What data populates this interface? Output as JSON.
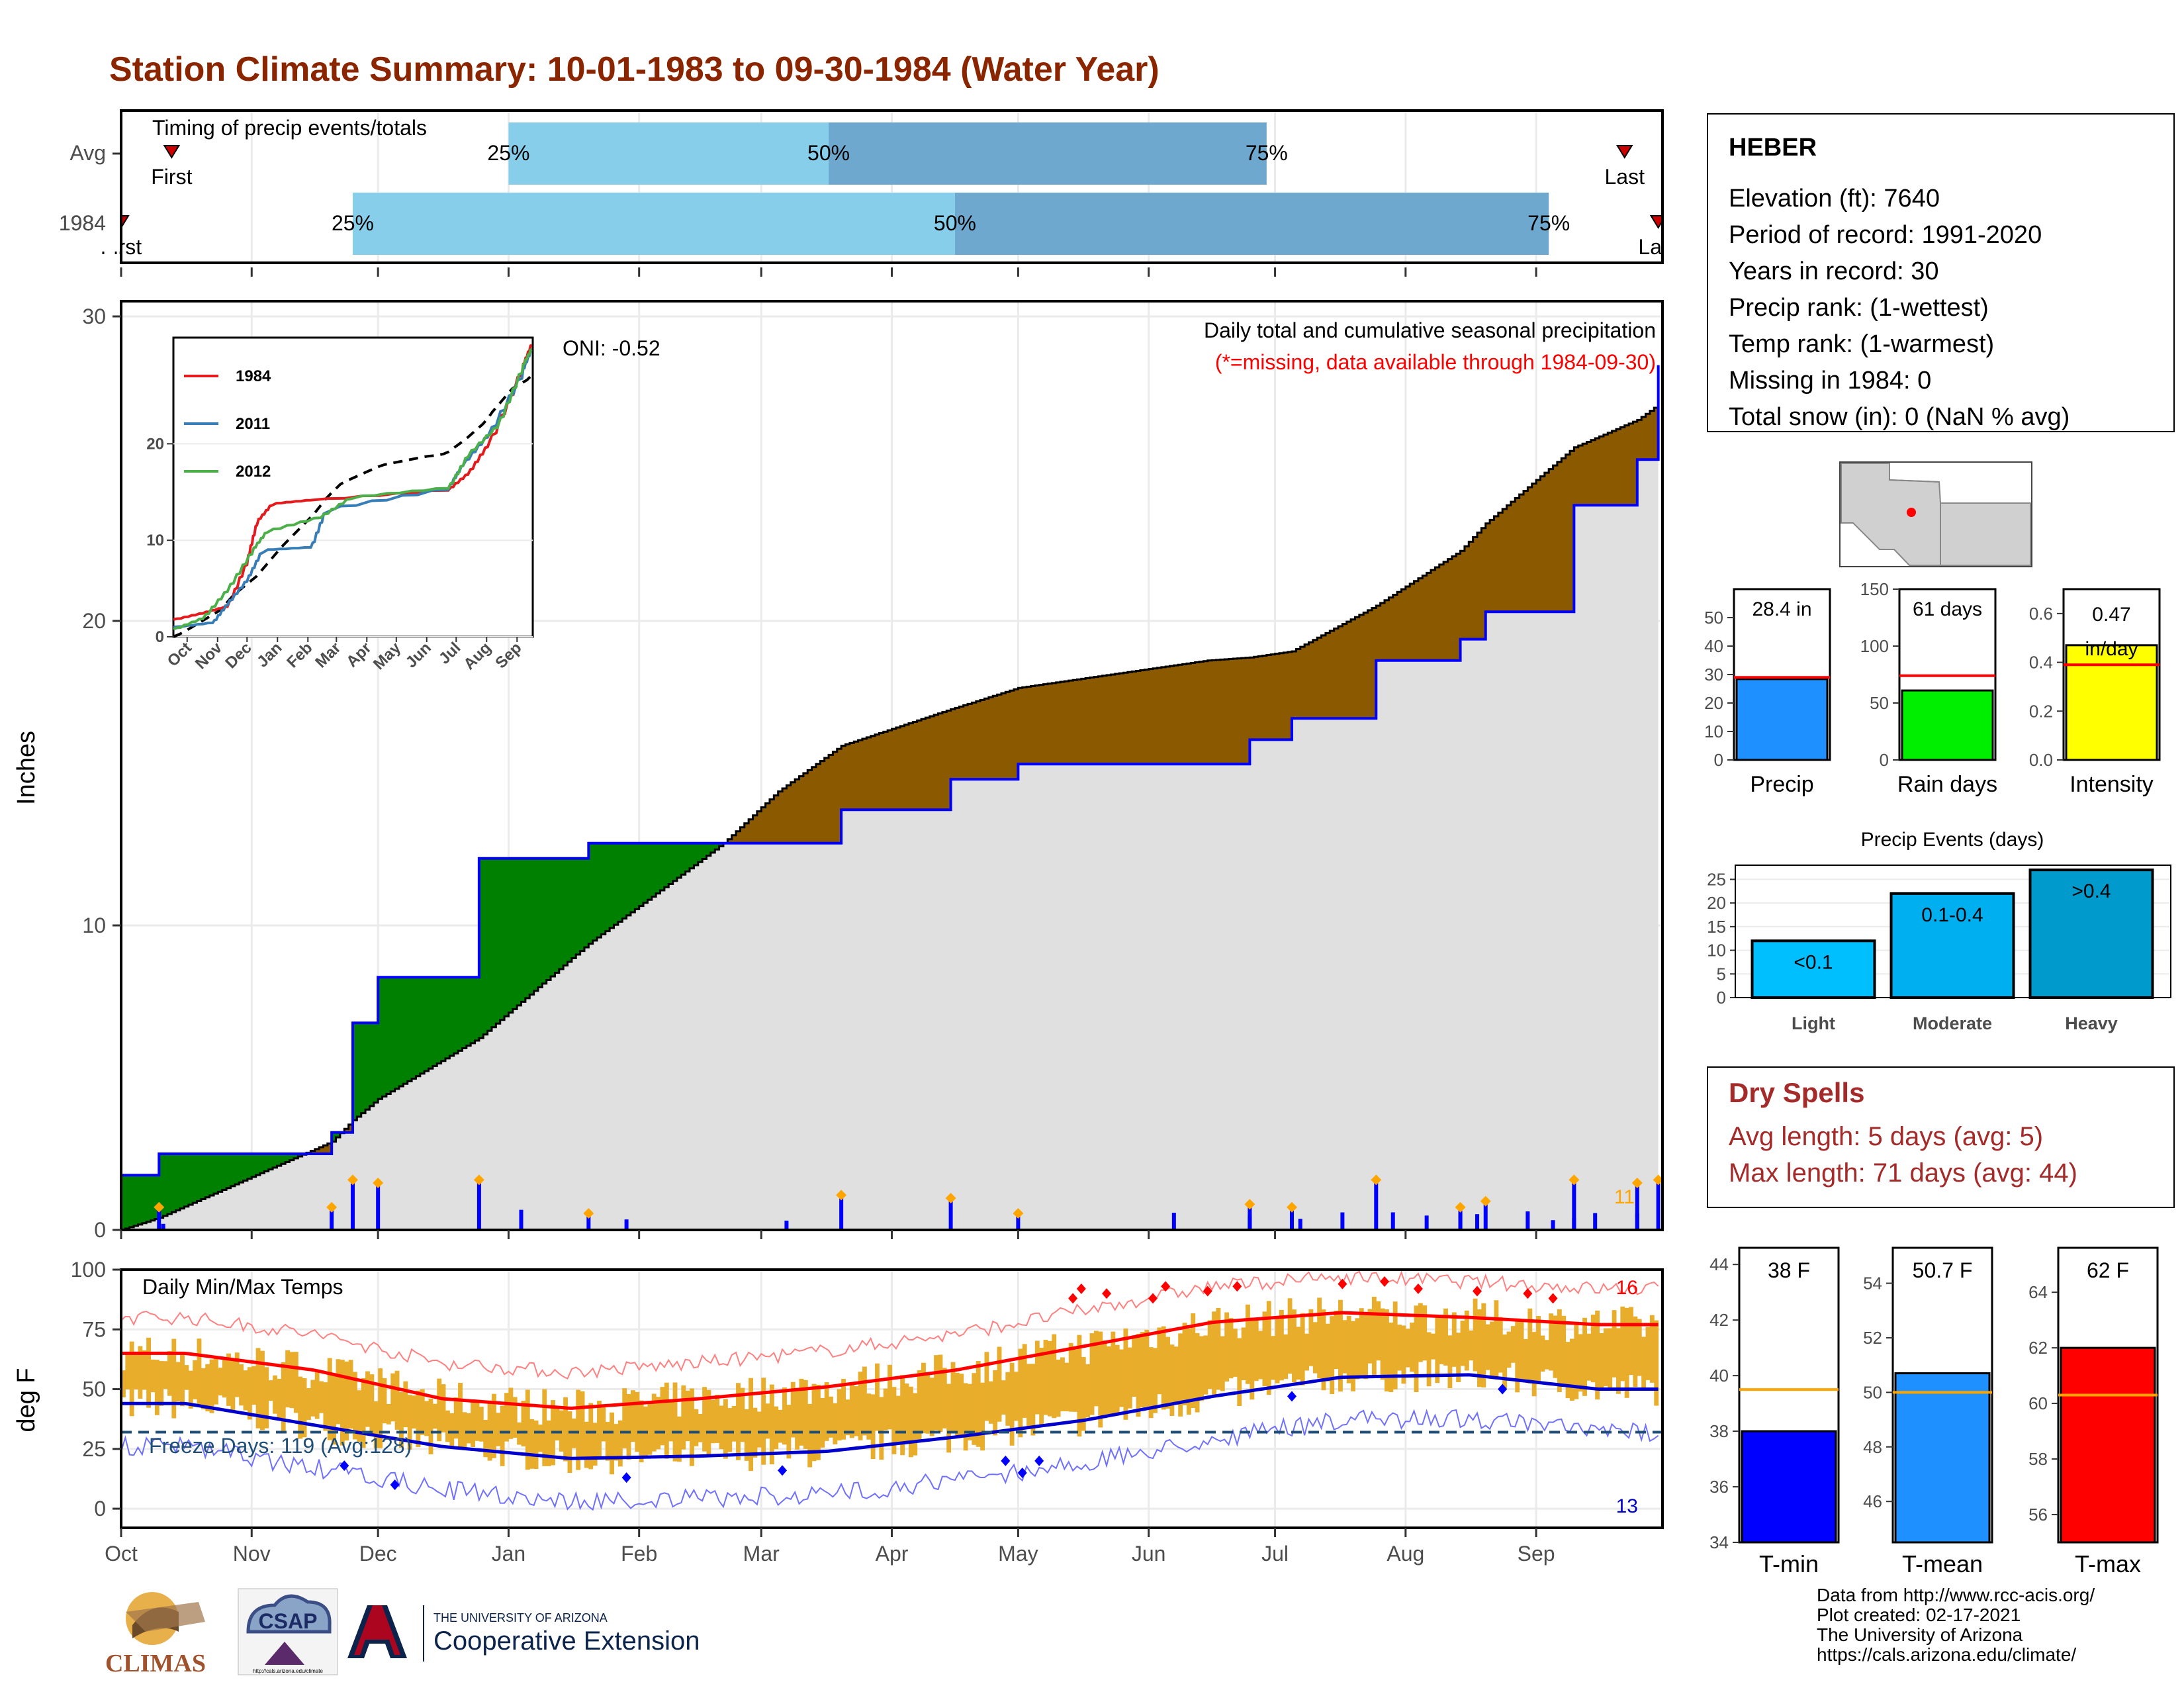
{
  "title": "Station Climate Summary: 10-01-1983 to 09-30-1984 (Water Year)",
  "colors": {
    "title": "#8b2500",
    "wet": "#008000",
    "dry": "#8b5a00",
    "avg_fill": "#e0e0e0",
    "bar": "#0000ff",
    "q_light": "#87ceeb",
    "q_dark": "#6fa8cf",
    "tmax": "#ff0000",
    "tmin": "#0000cd",
    "range": "#e8ad2a"
  },
  "timing": {
    "label": "Timing of precip events/totals",
    "rows": [
      {
        "name": "Avg",
        "first_label": "First",
        "last_label": "Last",
        "q25": "25%",
        "q50": "50%",
        "q75": "75%",
        "first_day": 12,
        "last_day": 357,
        "q25_day": 92,
        "q50_day": 168,
        "q75_day": 272
      },
      {
        "name": "1984",
        "first_label": "First",
        "last_label": "Last",
        "q25": "25%",
        "q50": "50%",
        "q75": "75%",
        "first_day": 0,
        "last_day": 365,
        "q25_day": 55,
        "q50_day": 198,
        "q75_day": 339
      }
    ]
  },
  "precip": {
    "ylabel": "Inches",
    "heading": "Daily total and cumulative seasonal precipitation",
    "note": "(*=missing, data available through 1984-09-30)",
    "oni": "ONI: -0.52",
    "count_label": "11",
    "yticks": [
      "0",
      "10",
      "20",
      "30"
    ]
  },
  "inset": {
    "series": [
      {
        "name": "1984",
        "color": "#e41a1c"
      },
      {
        "name": "2011",
        "color": "#377eb8"
      },
      {
        "name": "2012",
        "color": "#4daf4a"
      }
    ],
    "yticks": [
      "0",
      "10",
      "20"
    ],
    "months": [
      "Oct",
      "Nov",
      "Dec",
      "Jan",
      "Feb",
      "Mar",
      "Apr",
      "May",
      "Jun",
      "Jul",
      "Aug",
      "Sep"
    ]
  },
  "temps": {
    "ylabel": "deg F",
    "heading": "Daily Min/Max Temps",
    "freeze": "Freeze Days: 119 (Avg:128)",
    "hot_count": "16",
    "cold_count": "13",
    "yticks": [
      "0",
      "25",
      "50",
      "75",
      "100"
    ],
    "months": [
      "Oct",
      "Nov",
      "Dec",
      "Jan",
      "Feb",
      "Mar",
      "Apr",
      "May",
      "Jun",
      "Jul",
      "Aug",
      "Sep"
    ]
  },
  "station": {
    "name": "HEBER",
    "lines": [
      "Elevation (ft): 7640",
      "Period of record: 1991-2020",
      "Years in record: 30",
      "Precip rank:  (1-wettest)",
      "Temp rank:  (1-warmest)",
      "Missing in 1984: 0",
      "Total snow (in): 0 (NaN % avg)"
    ]
  },
  "mini_bars": [
    {
      "label": "Precip",
      "value_text": "28.4 in",
      "value": 28.4,
      "avg": 29.0,
      "max": 60,
      "ticks": [
        "0",
        "10",
        "20",
        "30",
        "40",
        "50"
      ],
      "tickvals": [
        0,
        10,
        20,
        30,
        40,
        50
      ],
      "color": "#1e90ff"
    },
    {
      "label": "Rain days",
      "value_text": "61 days",
      "value": 61,
      "avg": 74,
      "max": 150,
      "ticks": [
        "0",
        "50",
        "100",
        "150"
      ],
      "tickvals": [
        0,
        50,
        100,
        150
      ],
      "color": "#00ee00"
    },
    {
      "label": "Intensity",
      "value_text": "0.47 in/day",
      "value": 0.47,
      "avg": 0.39,
      "max": 0.7,
      "ticks": [
        "0.0",
        "0.2",
        "0.4",
        "0.6"
      ],
      "tickvals": [
        0,
        0.2,
        0.4,
        0.6
      ],
      "color": "#ffff00"
    }
  ],
  "events": {
    "title": "Precip Events (days)",
    "ticks": [
      "0",
      "5",
      "10",
      "15",
      "20",
      "25"
    ],
    "bars": [
      {
        "label": "Light",
        "text": "<0.1",
        "value": 12,
        "color": "#00bfff"
      },
      {
        "label": "Moderate",
        "text": "0.1-0.4",
        "value": 22,
        "color": "#00afef"
      },
      {
        "label": "Heavy",
        "text": ">0.4",
        "value": 27,
        "color": "#009acd"
      }
    ]
  },
  "dry_spells": {
    "title": "Dry Spells",
    "avg": "Avg length: 5 days (avg: 5)",
    "max": "Max length: 71 days (avg: 44)"
  },
  "temp_bars": [
    {
      "label": "T-min",
      "value_text": "38 F",
      "value": 38,
      "avg": 39.5,
      "ymin": 34,
      "ymax": 44.6,
      "ticks": [
        "34",
        "36",
        "38",
        "40",
        "42",
        "44"
      ],
      "tickvals": [
        34,
        36,
        38,
        40,
        42,
        44
      ],
      "color": "#0000ff"
    },
    {
      "label": "T-mean",
      "value_text": "50.7 F",
      "value": 50.7,
      "avg": 50.0,
      "ymin": 44.5,
      "ymax": 55.3,
      "ticks": [
        "46",
        "48",
        "50",
        "52",
        "54"
      ],
      "tickvals": [
        46,
        48,
        50,
        52,
        54
      ],
      "color": "#1e90ff"
    },
    {
      "label": "T-max",
      "value_text": "62 F",
      "value": 62,
      "avg": 60.3,
      "ymin": 55,
      "ymax": 65.6,
      "ticks": [
        "56",
        "58",
        "60",
        "62",
        "64"
      ],
      "tickvals": [
        56,
        58,
        60,
        62,
        64
      ],
      "color": "#ff0000"
    }
  ],
  "footer": [
    "Data from http://www.rcc-acis.org/",
    "Plot created: 02-17-2021",
    "The University of Arizona",
    "https://cals.arizona.edu/climate/"
  ],
  "logos": {
    "climas": "CLIMAS",
    "csap": "CSAP",
    "csap_url": "http://cals.arizona.edu/climate",
    "ua_line1": "THE UNIVERSITY OF ARIZONA",
    "ua_line2": "Cooperative Extension"
  },
  "chart_data": [
    {
      "type": "area",
      "title": "Daily total and cumulative seasonal precipitation",
      "ylabel": "Inches",
      "ylim": [
        0,
        30.5
      ],
      "x": [
        "1983-10-01",
        "1983-10-10",
        "1983-11-20",
        "1983-11-25",
        "1983-12-01",
        "1983-12-25",
        "1984-01-20",
        "1984-02-21",
        "1984-03-05",
        "1984-03-20",
        "1984-04-15",
        "1984-05-01",
        "1984-06-15",
        "1984-06-25",
        "1984-07-05",
        "1984-07-25",
        "1984-08-14",
        "1984-08-20",
        "1984-09-10",
        "1984-09-25",
        "1984-09-30"
      ],
      "series": [
        {
          "name": "1984",
          "values": [
            1.8,
            2.5,
            3.2,
            6.8,
            8.3,
            12.2,
            12.7,
            12.7,
            12.7,
            13.8,
            14.8,
            15.3,
            15.3,
            16.1,
            16.8,
            18.7,
            19.4,
            20.3,
            23.8,
            25.3,
            28.4
          ]
        },
        {
          "name": "Avg",
          "values": [
            0.0,
            0.4,
            2.9,
            3.6,
            4.3,
            6.3,
            9.4,
            12.7,
            14.4,
            15.9,
            17.1,
            17.8,
            18.7,
            18.8,
            19.0,
            20.5,
            22.3,
            23.2,
            25.7,
            26.6,
            27.1
          ]
        }
      ]
    },
    {
      "type": "line",
      "title": "Daily Min/Max Temps",
      "ylabel": "deg F",
      "ylim": [
        -8,
        100
      ],
      "x": [
        "Oct",
        "Nov",
        "Dec",
        "Jan",
        "Feb",
        "Mar",
        "Apr",
        "May",
        "Jun",
        "Jul",
        "Aug",
        "Sep"
      ],
      "series": [
        {
          "name": "Avg max",
          "values": [
            65,
            58,
            46,
            42,
            46,
            51,
            58,
            68,
            78,
            82,
            80,
            77
          ]
        },
        {
          "name": "Avg min",
          "values": [
            44,
            35,
            26,
            21,
            22,
            24,
            30,
            37,
            47,
            55,
            56,
            50
          ]
        }
      ],
      "freeze_line": 32
    }
  ]
}
